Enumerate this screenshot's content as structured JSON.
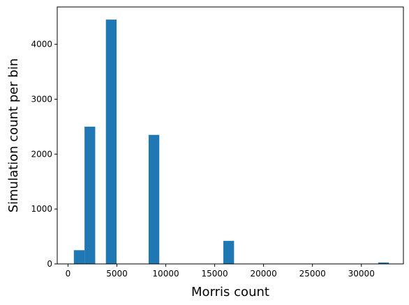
{
  "chart_data": {
    "type": "bar",
    "title": "",
    "xlabel": "Morris count",
    "ylabel": "Simulation count per bin",
    "xlim": [
      -1100,
      34300
    ],
    "ylim": [
      0,
      4680
    ],
    "x_ticks": [
      0,
      5000,
      10000,
      15000,
      20000,
      25000,
      30000
    ],
    "x_tick_labels": [
      "0",
      "5000",
      "10000",
      "15000",
      "20000",
      "25000",
      "30000"
    ],
    "y_ticks": [
      0,
      1000,
      2000,
      3000,
      4000
    ],
    "y_tick_labels": [
      "0",
      "1000",
      "2000",
      "3000",
      "4000"
    ],
    "bar_color": "#1f77b4",
    "bin_width": 1092,
    "bins": [
      {
        "x0": 600,
        "x1": 1692,
        "count": 250
      },
      {
        "x0": 1692,
        "x1": 2784,
        "count": 2500
      },
      {
        "x0": 3876,
        "x1": 4968,
        "count": 4450
      },
      {
        "x0": 8244,
        "x1": 9336,
        "count": 2350
      },
      {
        "x0": 15888,
        "x1": 16980,
        "count": 420
      },
      {
        "x0": 31721,
        "x1": 32813,
        "count": 25
      }
    ]
  }
}
